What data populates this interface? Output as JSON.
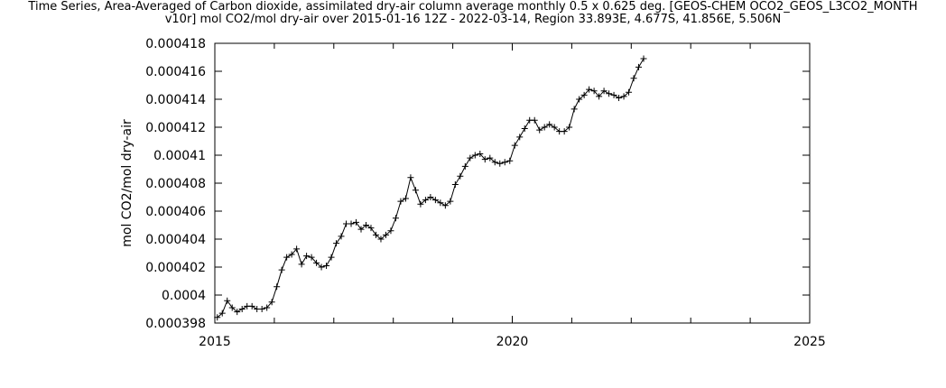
{
  "chart_data": {
    "type": "line",
    "title_line1": "Time Series, Area-Averaged of Carbon dioxide, assimilated dry-air column average monthly 0.5 x 0.625 deg. [GEOS-CHEM OCO2_GEOS_L3CO2_MONTH",
    "title_line2": "v10r] mol CO2/mol dry-air over 2015-01-16 12Z - 2022-03-14, Region 33.893E, 4.677S, 41.856E, 5.506N",
    "ylabel": "mol CO2/mol dry-air",
    "xlabel": "",
    "xlim": [
      2015,
      2025
    ],
    "ylim": [
      0.000398,
      0.000418
    ],
    "x_ticks": [
      "2015",
      "2020",
      "2025"
    ],
    "y_ticks": [
      "0.000398",
      "0.0004",
      "0.000402",
      "0.000404",
      "0.000406",
      "0.000408",
      "0.00041",
      "0.000412",
      "0.000414",
      "0.000416",
      "0.000418"
    ],
    "series": [
      {
        "marker": "+",
        "color": "#000000",
        "x_start": "2015-01",
        "x_step": "1 month",
        "values": [
          0.0003984,
          0.0003987,
          0.0003996,
          0.0003991,
          0.0003988,
          0.000399,
          0.0003992,
          0.0003992,
          0.000399,
          0.000399,
          0.0003991,
          0.0003995,
          0.0004006,
          0.0004018,
          0.0004027,
          0.0004029,
          0.0004033,
          0.0004022,
          0.0004028,
          0.0004027,
          0.0004023,
          0.000402,
          0.0004021,
          0.0004027,
          0.0004037,
          0.0004042,
          0.0004051,
          0.0004051,
          0.0004052,
          0.0004047,
          0.000405,
          0.0004048,
          0.0004043,
          0.000404,
          0.0004043,
          0.0004046,
          0.0004055,
          0.0004067,
          0.0004069,
          0.0004084,
          0.0004075,
          0.0004065,
          0.0004068,
          0.000407,
          0.0004068,
          0.0004066,
          0.0004064,
          0.0004067,
          0.0004079,
          0.0004085,
          0.0004092,
          0.0004098,
          0.00041,
          0.0004101,
          0.0004097,
          0.0004098,
          0.0004095,
          0.0004094,
          0.0004095,
          0.0004096,
          0.0004107,
          0.0004113,
          0.0004119,
          0.0004125,
          0.0004125,
          0.0004118,
          0.000412,
          0.0004122,
          0.000412,
          0.0004117,
          0.0004117,
          0.000412,
          0.0004133,
          0.000414,
          0.0004143,
          0.0004147,
          0.0004146,
          0.0004142,
          0.0004146,
          0.0004144,
          0.0004143,
          0.0004141,
          0.0004142,
          0.0004145,
          0.0004155,
          0.0004163,
          0.0004169
        ]
      }
    ]
  }
}
